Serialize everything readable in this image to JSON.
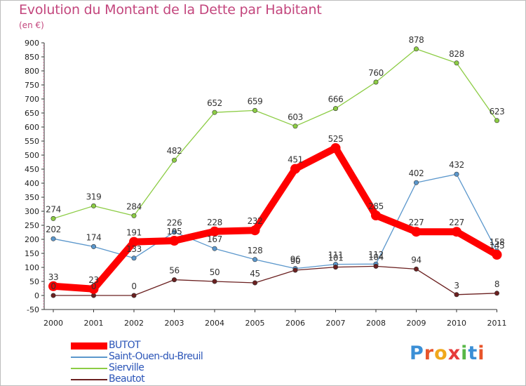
{
  "title": "Evolution du Montant de la Dette par Habitant",
  "unit": "(en €)",
  "logo": {
    "letters": [
      "P",
      "r",
      "o",
      "x",
      "i",
      "t",
      "i"
    ],
    "colors": [
      "#3b8fd6",
      "#e8542a",
      "#f0a81c",
      "#e63b3b",
      "#58b847",
      "#3b8fd6",
      "#e8542a"
    ]
  },
  "chart_data": {
    "type": "line",
    "x": [
      "2000",
      "2001",
      "2002",
      "2003",
      "2004",
      "2005",
      "2006",
      "2007",
      "2008",
      "2009",
      "2010",
      "2011"
    ],
    "ylim": [
      -50,
      900
    ],
    "yticks": [
      -50,
      0,
      50,
      100,
      150,
      200,
      250,
      300,
      350,
      400,
      450,
      500,
      550,
      600,
      650,
      700,
      750,
      800,
      850,
      900
    ],
    "grid": false,
    "legend_position": "bottom-left",
    "series": [
      {
        "name": "BUTOT",
        "color": "#ff0000",
        "values": [
          33,
          23,
          191,
          195,
          228,
          232,
          451,
          525,
          285,
          227,
          227,
          145
        ],
        "labels": [
          "33",
          "23",
          "191",
          "195",
          "228",
          "232",
          "451",
          "525",
          "285",
          "227",
          "227",
          "145"
        ]
      },
      {
        "name": "Saint-Ouen-du-Breuil",
        "color": "#5b97cc",
        "values": [
          202,
          174,
          133,
          226,
          167,
          128,
          96,
          111,
          112,
          402,
          432,
          158
        ],
        "labels": [
          "202",
          "174",
          "133",
          "226",
          "167",
          "128",
          "96",
          "111",
          "112",
          "402",
          "432",
          "158"
        ]
      },
      {
        "name": "Sierville",
        "color": "#8ccc44",
        "values": [
          274,
          319,
          284,
          482,
          652,
          659,
          603,
          666,
          760,
          878,
          828,
          623
        ],
        "labels": [
          "274",
          "319",
          "284",
          "482",
          "652",
          "659",
          "603",
          "666",
          "760",
          "878",
          "828",
          "623"
        ]
      },
      {
        "name": "Beautot",
        "color": "#6b2020",
        "values": [
          0,
          0,
          0,
          56,
          50,
          45,
          90,
          101,
          104,
          94,
          3,
          8
        ],
        "labels": [
          "0",
          "0",
          "0",
          "56",
          "50",
          "45",
          "90",
          "101",
          "104",
          "94",
          "3",
          "8"
        ]
      }
    ]
  }
}
